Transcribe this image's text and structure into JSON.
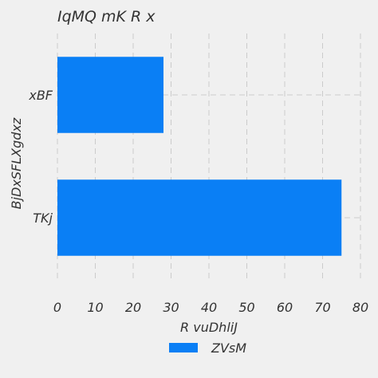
{
  "chart_data": {
    "type": "bar",
    "orientation": "horizontal",
    "title": "IqMQ mK R  x",
    "xlabel": "R vuDhliJ",
    "ylabel": "BjDxSFLXgdxz",
    "categories": [
      "xBF",
      "TKj"
    ],
    "series": [
      {
        "name": "ZVsM",
        "values": [
          28,
          75
        ],
        "color": "#0a7ff5"
      }
    ],
    "xlim": [
      0,
      80
    ],
    "xticks": [
      "0",
      "10",
      "20",
      "30",
      "40",
      "50",
      "60",
      "70",
      "80"
    ],
    "grid": true,
    "legend": "bottom-center"
  },
  "colors": {
    "background": "#f0f0f0",
    "grid": "#cbcbcb",
    "bar": "#0a7ff5"
  }
}
